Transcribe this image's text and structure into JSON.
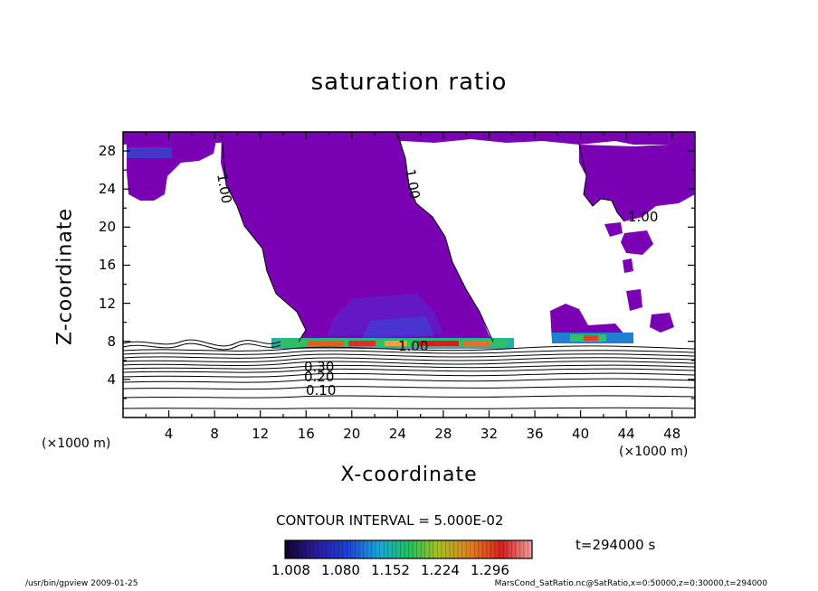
{
  "title": "saturation ratio",
  "chart_data": {
    "type": "contour",
    "title": "saturation ratio",
    "xlabel": "X-coordinate",
    "ylabel": "Z-coordinate",
    "x_unit": "(×1000 m)",
    "y_unit": "(×1000 m)",
    "xlim": [
      0,
      50
    ],
    "ylim": [
      0,
      30
    ],
    "x_ticks": [
      "4",
      "8",
      "12",
      "16",
      "20",
      "24",
      "28",
      "32",
      "36",
      "40",
      "44",
      "48"
    ],
    "y_ticks": [
      "4",
      "8",
      "12",
      "16",
      "20",
      "24",
      "28"
    ],
    "contour_labels": [
      "0.10",
      "0.20",
      "0.30",
      "1.00",
      "1.00",
      "1.00",
      "1.00"
    ],
    "contour_interval": "CONTOUR INTERVAL = 5.000E-02",
    "colorbar_ticks": [
      "1.008",
      "1.080",
      "1.152",
      "1.224",
      "1.296"
    ],
    "colorbar_colors": [
      "#1a0033",
      "#2a1a99",
      "#1f3fd6",
      "#19a8d8",
      "#20c060",
      "#a8c020",
      "#e08020",
      "#d82020",
      "#f0a0a0"
    ],
    "fill_color": "#7a00b4",
    "time": "t=294000 s"
  },
  "footer": {
    "left": "/usr/bin/gpview   2009-01-25",
    "right": "MarsCond_SatRatio.nc@SatRatio,x=0:50000,z=0:30000,t=294000"
  }
}
